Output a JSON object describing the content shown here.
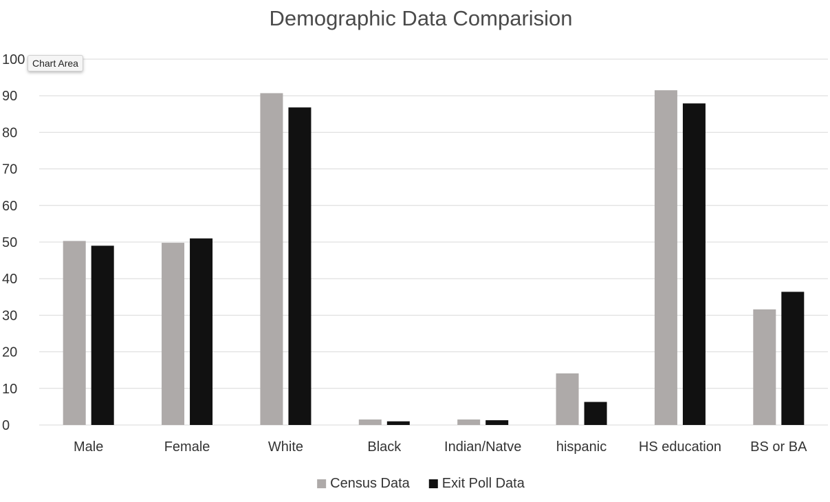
{
  "tooltip": {
    "label": "Chart Area"
  },
  "colors": {
    "census": "#aeaaa9",
    "exit_poll": "#111111",
    "gridline": "#d9d9d9",
    "text": "#333333",
    "title": "#4a4a4a"
  },
  "chart_data": {
    "type": "bar",
    "title": "Demographic Data Comparision",
    "xlabel": "",
    "ylabel": "",
    "ylim": [
      0,
      100
    ],
    "yticks": [
      0,
      10,
      20,
      30,
      40,
      50,
      60,
      70,
      80,
      90,
      100
    ],
    "grid": true,
    "legend_position": "bottom",
    "categories": [
      "Male",
      "Female",
      "White",
      "Black",
      "Indian/Natve",
      "hispanic",
      "HS education",
      "BS or BA"
    ],
    "series": [
      {
        "name": "Census Data",
        "color": "#aeaaa9",
        "values": [
          50.3,
          49.8,
          90.7,
          1.5,
          1.5,
          14.1,
          91.5,
          31.6
        ]
      },
      {
        "name": "Exit Poll Data",
        "color": "#111111",
        "values": [
          49.0,
          51.0,
          86.8,
          1.0,
          1.3,
          6.3,
          87.9,
          36.4
        ]
      }
    ]
  }
}
